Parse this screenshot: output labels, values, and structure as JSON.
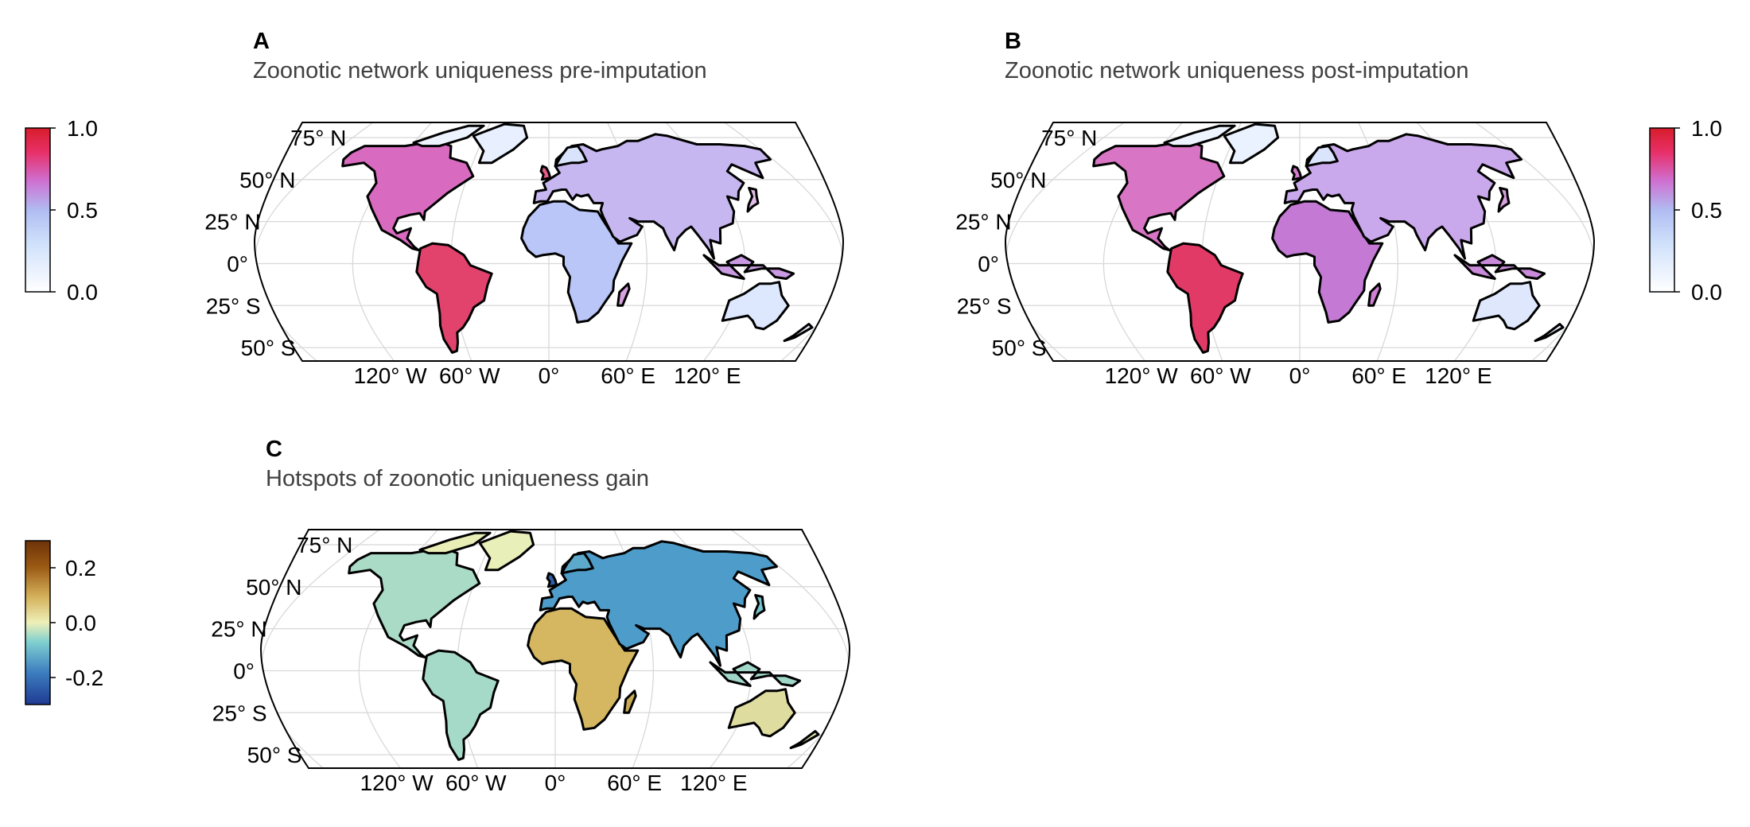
{
  "panels": [
    {
      "letter": "A",
      "title": "Zoonotic network uniqueness pre-imputation",
      "colorbar": {
        "ticks": [
          "1.0",
          "0.5",
          "0.0"
        ],
        "palette": "white-blue-magenta-red",
        "colors": [
          "#ffffff",
          "#a9c4f5",
          "#cf6fd0",
          "#e8285a",
          "#d71d2a"
        ]
      },
      "lat_labels": [
        "75° N",
        "50° N",
        "25° N",
        "0°",
        "25° S",
        "50° S"
      ],
      "lon_labels": [
        "120° W",
        "60° W",
        "0°",
        "60° E",
        "120° E"
      ],
      "projection": "equal-earth"
    },
    {
      "letter": "B",
      "title": "Zoonotic network uniqueness post-imputation",
      "colorbar": {
        "ticks": [
          "1.0",
          "0.5",
          "0.0"
        ],
        "palette": "white-blue-magenta-red",
        "colors": [
          "#ffffff",
          "#a9c4f5",
          "#cf6fd0",
          "#e8285a",
          "#d71d2a"
        ]
      },
      "lat_labels": [
        "75° N",
        "50° N",
        "25° N",
        "0°",
        "25° S",
        "50° S"
      ],
      "lon_labels": [
        "120° W",
        "60° W",
        "0°",
        "60° E",
        "120° E"
      ],
      "projection": "equal-earth"
    },
    {
      "letter": "C",
      "title": "Hotspots of zoonotic uniqueness gain",
      "colorbar": {
        "ticks": [
          "0.2",
          "0.0",
          "-0.2"
        ],
        "palette": "brown-beige-teal-blue",
        "colors": [
          "#1f3a93",
          "#3d7fc0",
          "#7fcfd0",
          "#eef0b8",
          "#d4b05a",
          "#9a5a14",
          "#6e3208"
        ]
      },
      "lat_labels": [
        "75° N",
        "50° N",
        "25° N",
        "0°",
        "25° S",
        "50° S"
      ],
      "lon_labels": [
        "120° W",
        "60° W",
        "0°",
        "60° E",
        "120° E"
      ],
      "projection": "equal-earth"
    }
  ]
}
